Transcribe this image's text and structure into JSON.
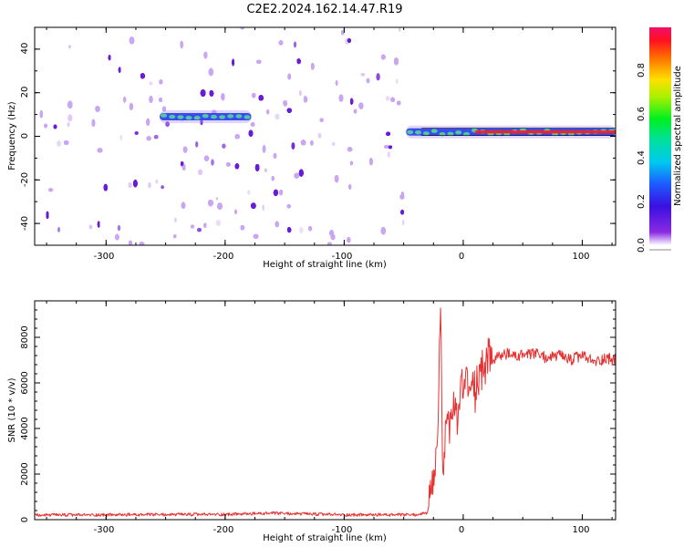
{
  "title": "C2E2.2024.162.14.47.R19",
  "colors": {
    "snr_line": "#e83232",
    "band": "#50c8a0",
    "speckle_dark": "#6a1cd8",
    "speckle_light": "#c9a6f2"
  },
  "chart_data": [
    {
      "type": "heatmap",
      "title": "C2E2.2024.162.14.47.R19",
      "xlabel": "Height of straight line (km)",
      "ylabel": "Frequency (Hz)",
      "xlim": [
        -360,
        128
      ],
      "ylim": [
        -50,
        50
      ],
      "xticks": [
        "-300",
        "-200",
        "-100",
        "0",
        "100"
      ],
      "yticks": [
        "-40",
        "-20",
        "0",
        "20",
        "40"
      ],
      "noise_region_x": [
        -360,
        -50
      ],
      "features": [
        {
          "x_start": -255,
          "x_end": -178,
          "frequency": 9,
          "amplitude": 0.25
        },
        {
          "x_start": -48,
          "x_end": 128,
          "frequency": 2,
          "amplitude": 0.9
        }
      ],
      "colorbar": {
        "label": "Normalized spectral amplitude",
        "range": [
          0,
          1
        ],
        "ticks": [
          "0.0",
          "0.2",
          "0.4",
          "0.6",
          "0.8"
        ]
      }
    },
    {
      "type": "line",
      "xlabel": "Height of straight line (km)",
      "ylabel": "SNR (10 * v/v)",
      "xlim": [
        -360,
        128
      ],
      "ylim": [
        0,
        9600
      ],
      "xticks": [
        "-300",
        "-200",
        "-100",
        "0",
        "100"
      ],
      "yticks": [
        "0",
        "2000",
        "4000",
        "6000",
        "8000"
      ],
      "grid": false,
      "series": [
        {
          "x": [
            -360,
            -300,
            -200,
            -160,
            -100,
            -40,
            -30,
            -25,
            -22,
            -20,
            -19,
            -18,
            -17,
            -15,
            -12,
            -10,
            -8,
            -5,
            -2,
            0,
            3,
            6,
            8,
            10,
            12,
            15,
            18,
            20,
            23,
            25,
            28,
            30,
            35,
            40,
            45,
            50,
            55,
            60,
            70,
            80,
            90,
            100,
            110,
            120,
            128
          ],
          "y": [
            200,
            210,
            230,
            280,
            210,
            210,
            300,
            1500,
            3000,
            7000,
            9500,
            4500,
            2500,
            3500,
            4000,
            4500,
            5000,
            4200,
            6000,
            5500,
            6500,
            5000,
            7000,
            5500,
            6200,
            6500,
            6800,
            7000,
            7200,
            6900,
            7200,
            7100,
            7300,
            7200,
            7150,
            7250,
            7200,
            7300,
            7100,
            7200,
            7000,
            7200,
            6900,
            7100,
            7000
          ]
        }
      ]
    }
  ]
}
